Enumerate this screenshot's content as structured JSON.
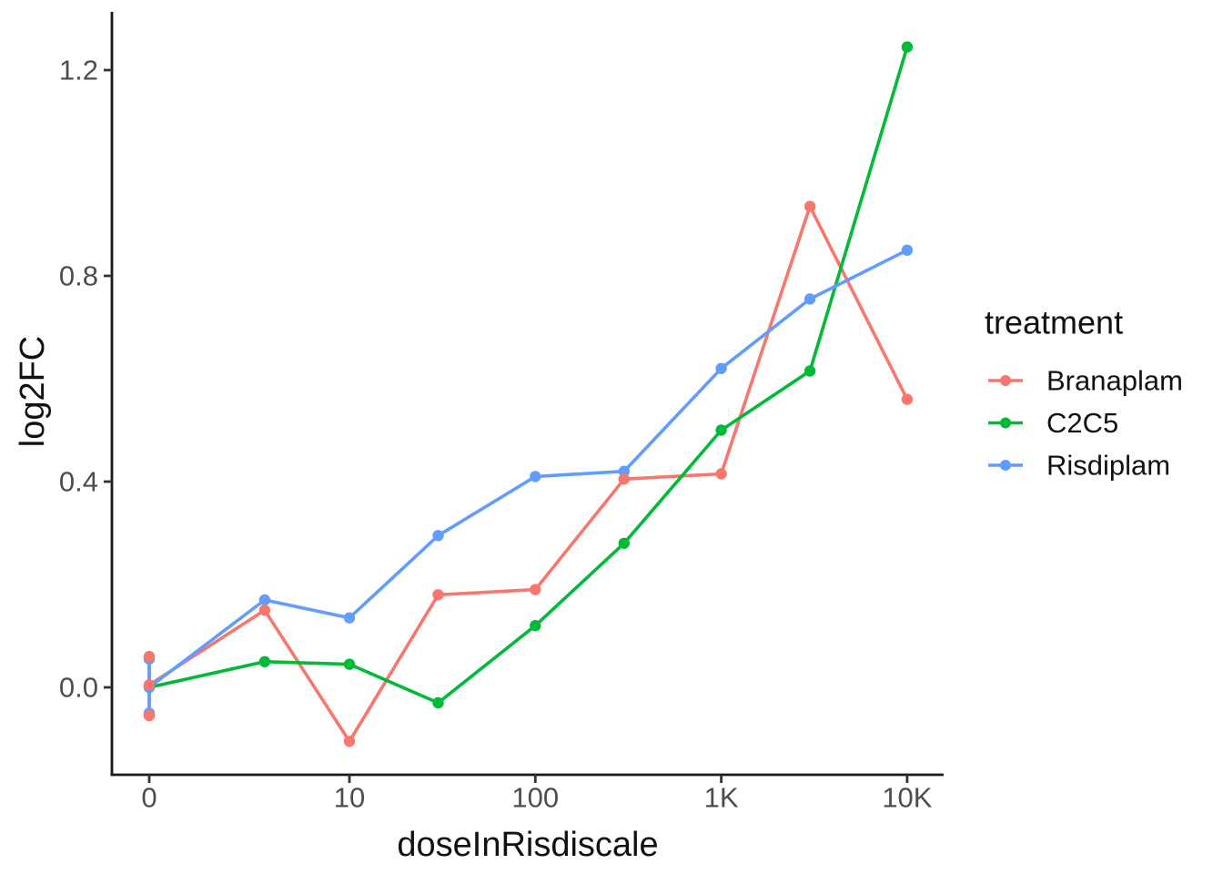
{
  "chart_data": {
    "type": "line",
    "title": "",
    "xlabel": "doseInRisdiscale",
    "ylabel": "log2FC",
    "x_scale": "log10 for nonzero doses; dose 0 plotted at left origin tick",
    "x_ticks": [
      {
        "label": "0",
        "dose": 0
      },
      {
        "label": "10",
        "dose": 10
      },
      {
        "label": "100",
        "dose": 100
      },
      {
        "label": "1K",
        "dose": 1000
      },
      {
        "label": "10K",
        "dose": 10000
      }
    ],
    "y_ticks": [
      0.0,
      0.4,
      0.8,
      1.2
    ],
    "y_tick_labels": [
      "0.0",
      "0.4",
      "0.8",
      "1.2"
    ],
    "ylim": [
      -0.17,
      1.3
    ],
    "grid": false,
    "panel_background": "#ffffff",
    "axis_line_color": "#1a1a1a",
    "tick_label_color": "#4d4d4d",
    "legend": {
      "title": "treatment",
      "position": "right",
      "entries": [
        {
          "label": "Branaplam",
          "color": "#F8766D"
        },
        {
          "label": "C2C5",
          "color": "#00BA38"
        },
        {
          "label": "Risdiplam",
          "color": "#619CFF"
        }
      ]
    },
    "series": [
      {
        "name": "Branaplam",
        "color": "#F8766D",
        "points": [
          {
            "dose": 0,
            "y": 0.06
          },
          {
            "dose": 0,
            "y": -0.055
          },
          {
            "dose": 0,
            "y": 0.005
          },
          {
            "dose": 3.5,
            "y": 0.15
          },
          {
            "dose": 10,
            "y": -0.105
          },
          {
            "dose": 30,
            "y": 0.18
          },
          {
            "dose": 100,
            "y": 0.19
          },
          {
            "dose": 300,
            "y": 0.405
          },
          {
            "dose": 1000,
            "y": 0.415
          },
          {
            "dose": 3000,
            "y": 0.935
          },
          {
            "dose": 10000,
            "y": 0.56
          }
        ]
      },
      {
        "name": "C2C5",
        "color": "#00BA38",
        "points": [
          {
            "dose": 0,
            "y": 0.0
          },
          {
            "dose": 3.5,
            "y": 0.05
          },
          {
            "dose": 10,
            "y": 0.045
          },
          {
            "dose": 30,
            "y": -0.03
          },
          {
            "dose": 100,
            "y": 0.12
          },
          {
            "dose": 300,
            "y": 0.28
          },
          {
            "dose": 1000,
            "y": 0.5
          },
          {
            "dose": 3000,
            "y": 0.615
          },
          {
            "dose": 10000,
            "y": 1.245
          }
        ]
      },
      {
        "name": "Risdiplam",
        "color": "#619CFF",
        "points": [
          {
            "dose": 0,
            "y": 0.055
          },
          {
            "dose": 0,
            "y": -0.05
          },
          {
            "dose": 0,
            "y": 0.0
          },
          {
            "dose": 3.5,
            "y": 0.17
          },
          {
            "dose": 10,
            "y": 0.135
          },
          {
            "dose": 30,
            "y": 0.295
          },
          {
            "dose": 100,
            "y": 0.41
          },
          {
            "dose": 300,
            "y": 0.42
          },
          {
            "dose": 1000,
            "y": 0.62
          },
          {
            "dose": 3000,
            "y": 0.755
          },
          {
            "dose": 10000,
            "y": 0.85
          }
        ]
      }
    ],
    "line_draw_order": [
      "Branaplam",
      "C2C5",
      "Risdiplam"
    ],
    "point_draw_order": [
      "C2C5",
      "Risdiplam",
      "Branaplam"
    ]
  }
}
